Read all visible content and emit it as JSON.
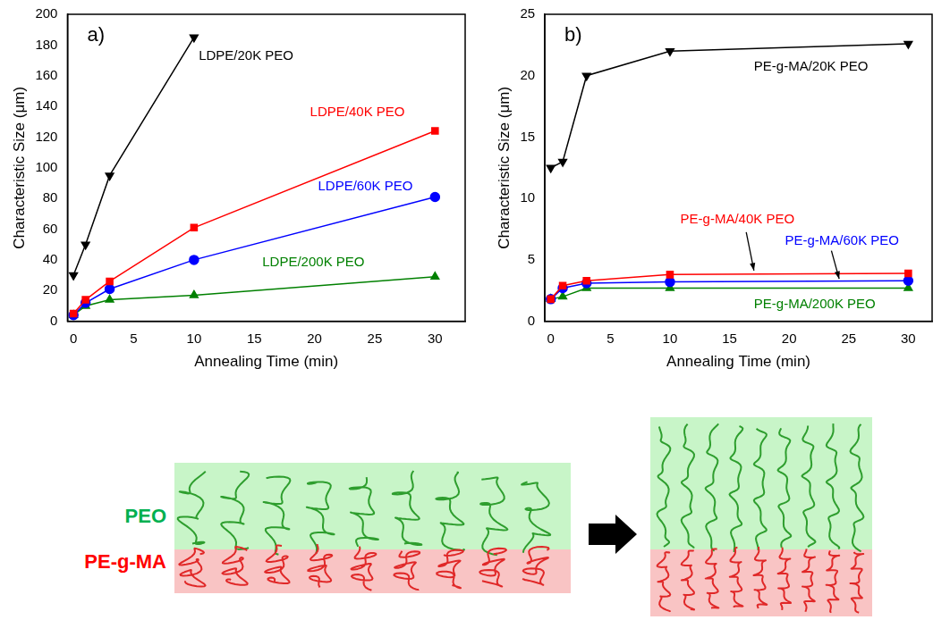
{
  "chart_data": [
    {
      "type": "line",
      "panel_label": "a)",
      "x_label": "Annealing Time (min)",
      "y_label": "Characteristic Size (μm)",
      "x": [
        0,
        1,
        3,
        10,
        30
      ],
      "xlim": [
        -0.5,
        32.5
      ],
      "xticks": [
        0,
        5,
        10,
        15,
        20,
        25,
        30
      ],
      "ylim": [
        0,
        200
      ],
      "yticks": [
        0,
        20,
        40,
        60,
        80,
        100,
        120,
        140,
        160,
        180,
        200
      ],
      "grid": false,
      "series": [
        {
          "name": "LDPE/20K PEO",
          "color": "#000000",
          "marker": "triangle-down",
          "values": [
            30,
            50,
            95,
            185,
            null
          ]
        },
        {
          "name": "LDPE/40K PEO",
          "color": "#ff0000",
          "marker": "square",
          "values": [
            5,
            14,
            26,
            61,
            124
          ]
        },
        {
          "name": "LDPE/60K PEO",
          "color": "#0000ff",
          "marker": "circle",
          "values": [
            4,
            12,
            21,
            40,
            81
          ]
        },
        {
          "name": "LDPE/200K PEO",
          "color": "#008000",
          "marker": "triangle",
          "values": [
            4,
            10,
            14,
            17,
            29
          ]
        }
      ]
    },
    {
      "type": "line",
      "panel_label": "b)",
      "x_label": "Annealing Time (min)",
      "y_label": "Characteristic Size (μm)",
      "x": [
        0,
        1,
        3,
        10,
        30
      ],
      "xlim": [
        -0.5,
        32
      ],
      "xticks": [
        0,
        5,
        10,
        15,
        20,
        25,
        30
      ],
      "ylim": [
        0,
        25
      ],
      "yticks": [
        0,
        5,
        10,
        15,
        20,
        25
      ],
      "grid": false,
      "series": [
        {
          "name": "PE-g-MA/20K PEO",
          "color": "#000000",
          "marker": "triangle-down",
          "values": [
            12.5,
            13,
            20,
            22,
            22.6
          ]
        },
        {
          "name": "PE-g-MA/40K PEO",
          "color": "#ff0000",
          "marker": "square",
          "values": [
            1.8,
            2.9,
            3.3,
            3.8,
            3.9
          ]
        },
        {
          "name": "PE-g-MA/60K PEO",
          "color": "#0000ff",
          "marker": "circle",
          "values": [
            1.8,
            2.7,
            3.1,
            3.2,
            3.3
          ]
        },
        {
          "name": "PE-g-MA/200K PEO",
          "color": "#008000",
          "marker": "triangle",
          "values": [
            1.8,
            2.0,
            2.7,
            2.7,
            2.7
          ]
        }
      ]
    }
  ],
  "diagram": {
    "labels": [
      {
        "text": "PEO",
        "color": "#00b050"
      },
      {
        "text": "PE-g-MA",
        "color": "#ff0000"
      }
    ]
  }
}
